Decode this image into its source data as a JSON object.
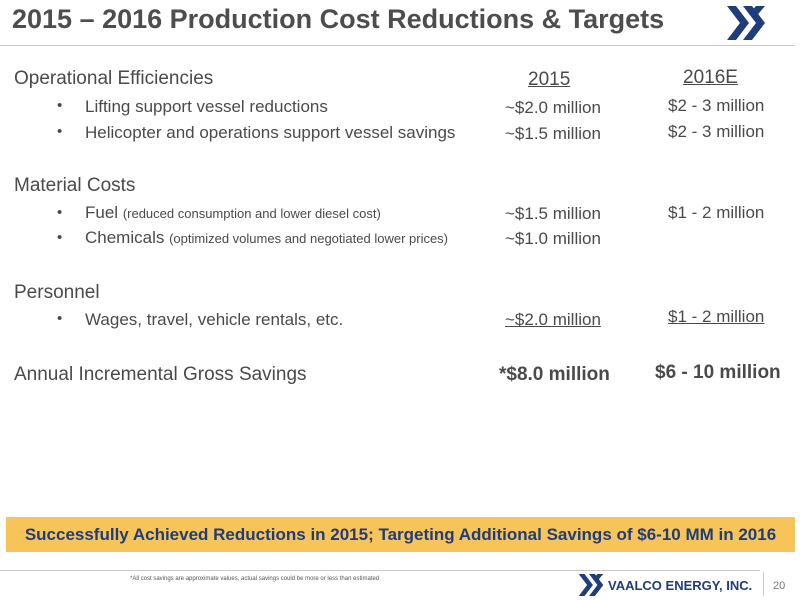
{
  "title": "2015 – 2016 Production Cost Reductions & Targets",
  "columns": {
    "col2015": "2015",
    "col2016": "2016E"
  },
  "bullet_char": "•",
  "sections": [
    {
      "heading": "Operational Efficiencies",
      "items": [
        {
          "label": "Lifting support vessel reductions",
          "note": "",
          "v2015": "~$2.0 million",
          "v2016": "$2 - 3 million"
        },
        {
          "label": "Helicopter and operations support vessel savings",
          "note": "",
          "v2015": "~$1.5 million",
          "v2016": "$2 - 3 million"
        }
      ]
    },
    {
      "heading": "Material Costs",
      "items": [
        {
          "label": "Fuel",
          "note": "(reduced consumption and lower diesel cost)",
          "v2015": "~$1.5 million",
          "v2016": "$1 - 2 million"
        },
        {
          "label": "Chemicals",
          "note": "(optimized volumes and negotiated lower prices)",
          "v2015": "~$1.0 million",
          "v2016": ""
        }
      ]
    },
    {
      "heading": "Personnel",
      "items": [
        {
          "label": "Wages, travel, vehicle rentals, etc.",
          "note": "",
          "v2015": "~$2.0 million",
          "v2016": "$1 - 2 million"
        }
      ]
    }
  ],
  "total": {
    "label": "Annual Incremental Gross Savings",
    "v2015": "*$8.0 million",
    "v2016": "$6 - 10 million"
  },
  "banner": "Successfully Achieved Reductions in 2015; Targeting Additional Savings of $6-10 MM in 2016",
  "footnote": "*All cost savings are approximate values, actual savings could be more or less than estimated",
  "footer": {
    "company": "VAALCO ENERGY, INC.",
    "page": "20"
  },
  "colors": {
    "brand_blue": "#1f3d7a",
    "banner_bg": "#f7c45a",
    "text": "#4a4a4a"
  },
  "icons": {
    "logo": "vaalco-x-logo-icon"
  }
}
